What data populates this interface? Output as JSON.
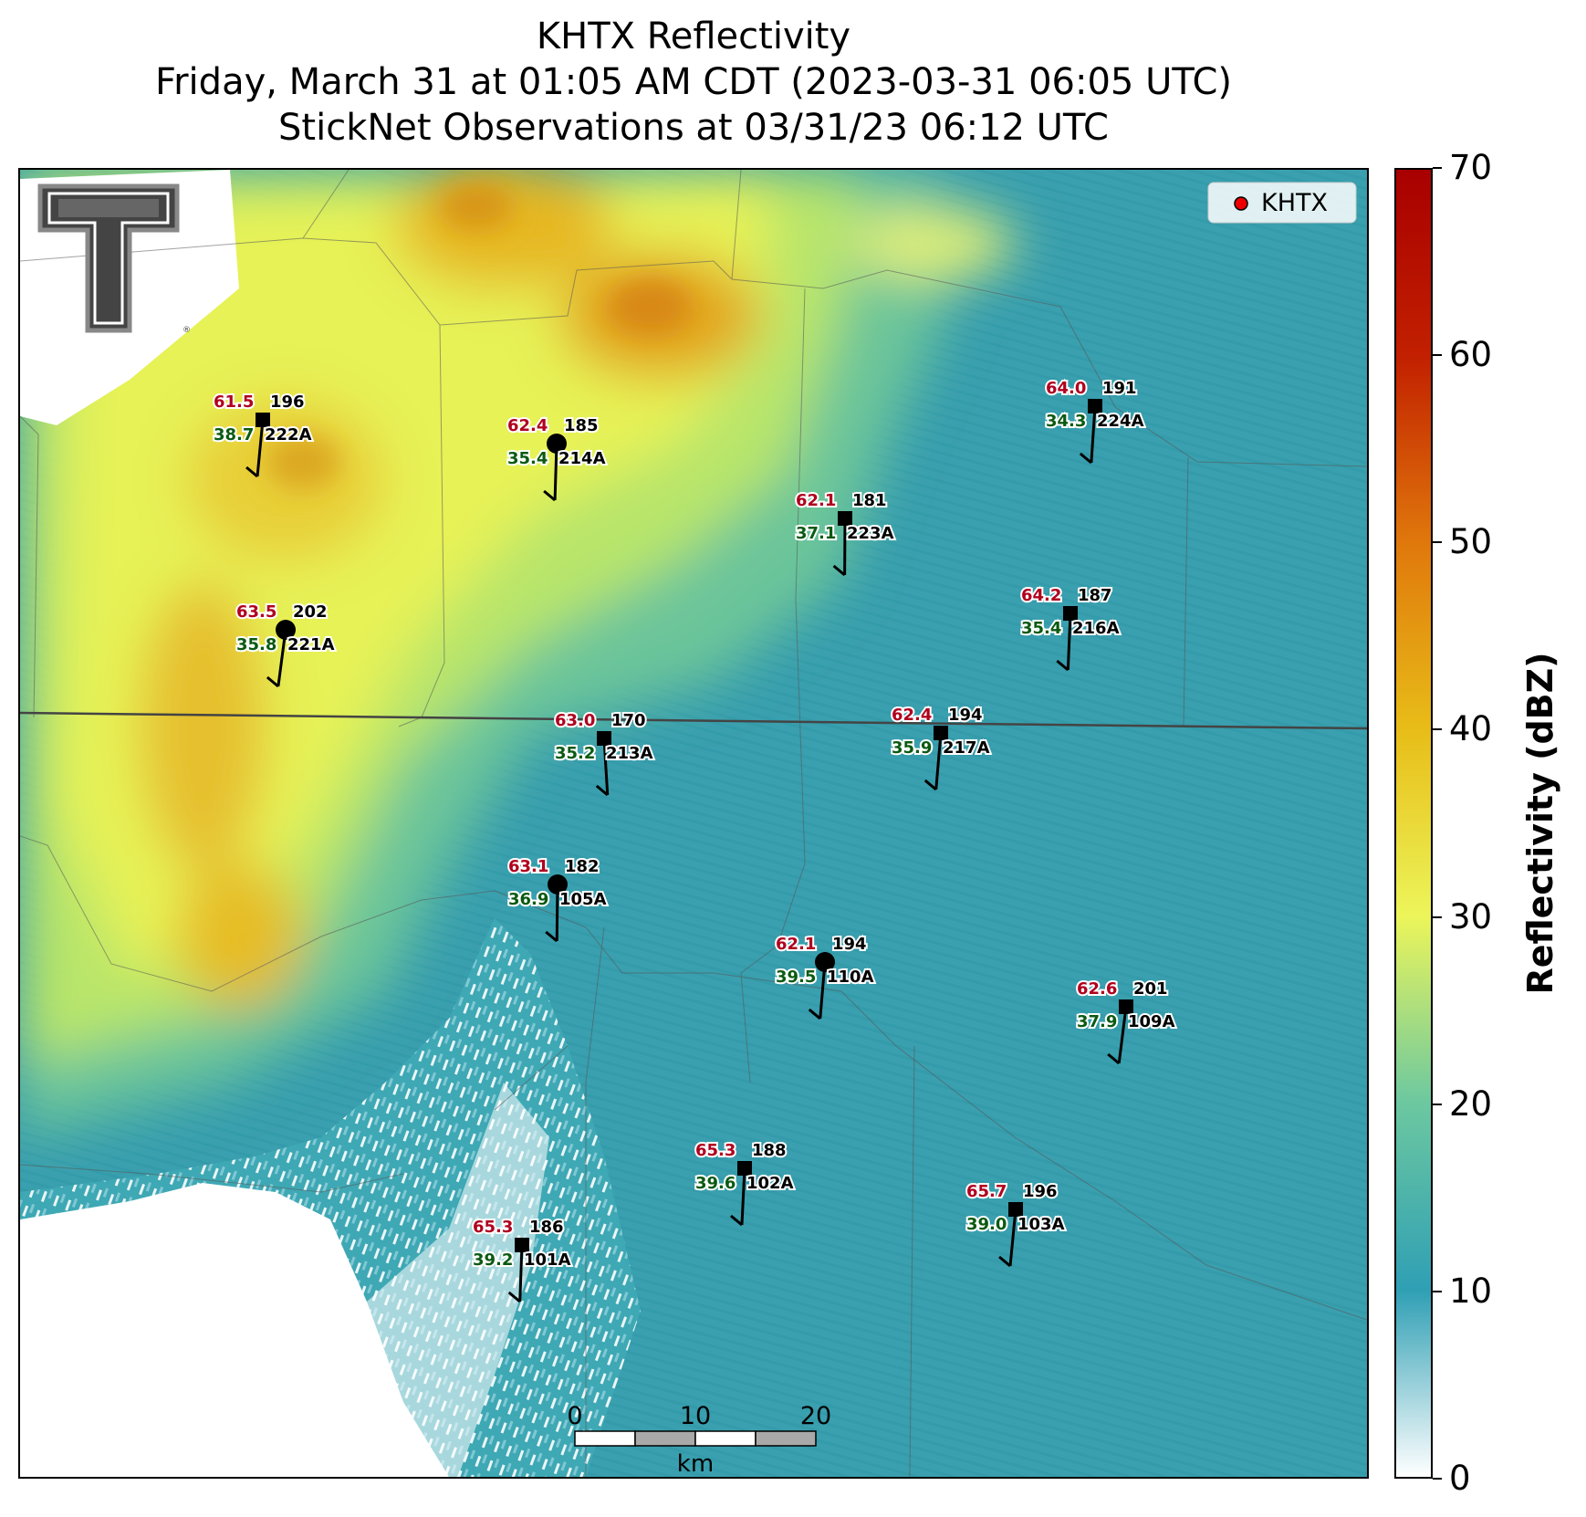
{
  "title": {
    "line1": "KHTX Reflectivity",
    "line2": "Friday, March 31 at 01:05 AM CDT (2023-03-31 06:05 UTC)",
    "line3": "StickNet Observations at 03/31/23 06:12 UTC"
  },
  "legend": {
    "marker_color": "#ee0000",
    "label": "KHTX"
  },
  "colorbar": {
    "label": "Reflectivity (dBZ)",
    "ticks": [
      "0",
      "10",
      "20",
      "30",
      "40",
      "50",
      "60",
      "70"
    ]
  },
  "scale_bar": {
    "ticks": [
      "0",
      "10",
      "20"
    ],
    "unit": "km"
  },
  "stations": [
    {
      "id": "222A",
      "temp": "61.5",
      "dew": "38.7",
      "dir": "196",
      "marker": "square"
    },
    {
      "id": "214A",
      "temp": "62.4",
      "dew": "35.4",
      "dir": "185",
      "marker": "circle"
    },
    {
      "id": "224A",
      "temp": "64.0",
      "dew": "34.3",
      "dir": "191",
      "marker": "square"
    },
    {
      "id": "223A",
      "temp": "62.1",
      "dew": "37.1",
      "dir": "181",
      "marker": "square"
    },
    {
      "id": "221A",
      "temp": "63.5",
      "dew": "35.8",
      "dir": "202",
      "marker": "circle"
    },
    {
      "id": "216A",
      "temp": "64.2",
      "dew": "35.4",
      "dir": "187",
      "marker": "square"
    },
    {
      "id": "213A",
      "temp": "63.0",
      "dew": "35.2",
      "dir": "170",
      "marker": "square"
    },
    {
      "id": "217A",
      "temp": "62.4",
      "dew": "35.9",
      "dir": "194",
      "marker": "square"
    },
    {
      "id": "105A",
      "temp": "63.1",
      "dew": "36.9",
      "dir": "182",
      "marker": "circle"
    },
    {
      "id": "110A",
      "temp": "62.1",
      "dew": "39.5",
      "dir": "194",
      "marker": "circle"
    },
    {
      "id": "109A",
      "temp": "62.6",
      "dew": "37.9",
      "dir": "201",
      "marker": "square"
    },
    {
      "id": "102A",
      "temp": "65.3",
      "dew": "39.6",
      "dir": "188",
      "marker": "square"
    },
    {
      "id": "103A",
      "temp": "65.7",
      "dew": "39.0",
      "dir": "196",
      "marker": "square"
    },
    {
      "id": "101A",
      "temp": "65.3",
      "dew": "39.2",
      "dir": "186",
      "marker": "square"
    }
  ],
  "colors": {
    "temp": "#b0001e",
    "dew": "#0b5a12",
    "text": "#000000"
  }
}
